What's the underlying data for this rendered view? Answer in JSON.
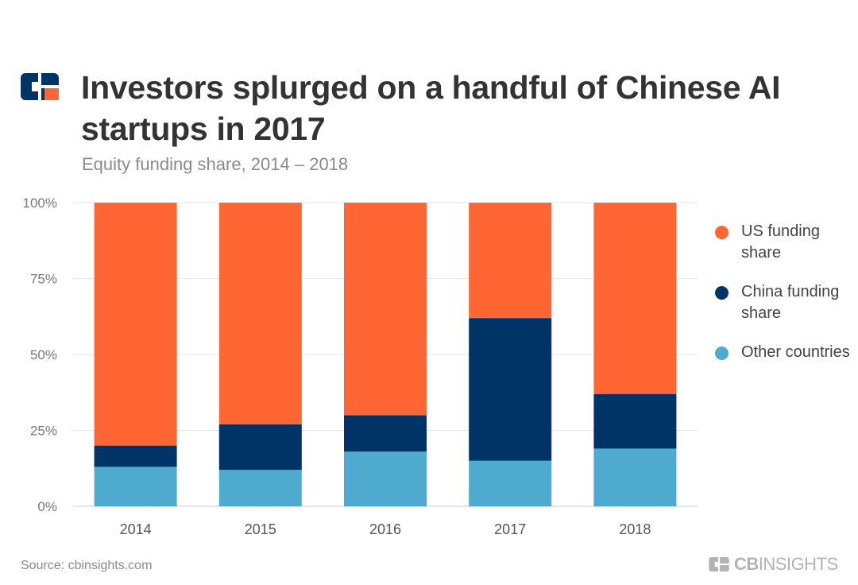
{
  "header": {
    "title": "Investors splurged on a handful of Chinese AI startups in 2017",
    "subtitle": "Equity funding share, 2014 – 2018"
  },
  "footer": {
    "source": "Source: cbinsights.com",
    "brand_bold": "CB",
    "brand_rest": "INSIGHTS"
  },
  "colors": {
    "us": "#ff6633",
    "china": "#003366",
    "other": "#4eabcf",
    "logo_dark": "#003366",
    "logo_accent": "#ff6633",
    "brand_gray": "#b3b3b3"
  },
  "chart_data": {
    "type": "bar",
    "stacked": true,
    "categories": [
      "2014",
      "2015",
      "2016",
      "2017",
      "2018"
    ],
    "series": [
      {
        "name": "Other countries",
        "color_key": "other",
        "values": [
          13,
          12,
          18,
          15,
          19
        ]
      },
      {
        "name": "China funding share",
        "color_key": "china",
        "values": [
          7,
          15,
          12,
          47,
          18
        ]
      },
      {
        "name": "US funding share",
        "color_key": "us",
        "values": [
          80,
          73,
          70,
          38,
          63
        ]
      }
    ],
    "ylim": [
      0,
      100
    ],
    "yticks": [
      0,
      25,
      50,
      75,
      100
    ],
    "ytick_labels": [
      "0%",
      "25%",
      "50%",
      "75%",
      "100%"
    ],
    "grid": true,
    "legend": {
      "placement": "right",
      "entries": [
        {
          "label": "US funding share",
          "color_key": "us"
        },
        {
          "label": "China funding share",
          "color_key": "china"
        },
        {
          "label": "Other countries",
          "color_key": "other"
        }
      ]
    },
    "xlabel": "",
    "ylabel": ""
  }
}
